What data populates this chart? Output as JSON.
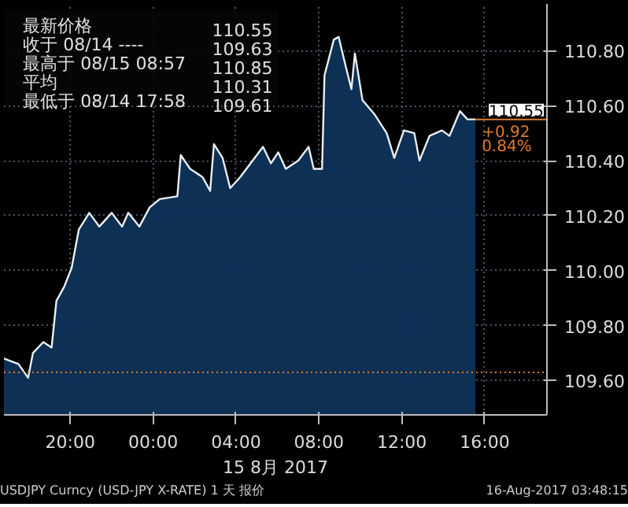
{
  "chart_data": {
    "type": "area",
    "xlabel": "15 8月 2017",
    "x": [
      "2017-08-14T16:48",
      "2017-08-14T17:30",
      "2017-08-14T17:58",
      "2017-08-14T18:12",
      "2017-08-14T18:42",
      "2017-08-14T19:06",
      "2017-08-14T19:20",
      "2017-08-14T19:42",
      "2017-08-14T20:04",
      "2017-08-14T20:25",
      "2017-08-14T20:55",
      "2017-08-14T21:24",
      "2017-08-14T22:00",
      "2017-08-14T22:30",
      "2017-08-14T22:48",
      "2017-08-14T23:20",
      "2017-08-14T23:50",
      "2017-08-15T00:19",
      "2017-08-15T01:10",
      "2017-08-15T01:20",
      "2017-08-15T01:47",
      "2017-08-15T02:23",
      "2017-08-15T02:45",
      "2017-08-15T02:56",
      "2017-08-15T03:21",
      "2017-08-15T03:43",
      "2017-08-15T04:12",
      "2017-08-15T04:42",
      "2017-08-15T05:18",
      "2017-08-15T05:41",
      "2017-08-15T06:02",
      "2017-08-15T06:24",
      "2017-08-15T07:00",
      "2017-08-15T07:30",
      "2017-08-15T07:45",
      "2017-08-15T08:09",
      "2017-08-15T08:16",
      "2017-08-15T08:43",
      "2017-08-15T08:57",
      "2017-08-15T09:18",
      "2017-08-15T09:34",
      "2017-08-15T09:44",
      "2017-08-15T10:06",
      "2017-08-15T10:40",
      "2017-08-15T11:16",
      "2017-08-15T11:38",
      "2017-08-15T12:06",
      "2017-08-15T12:36",
      "2017-08-15T12:51",
      "2017-08-15T13:20",
      "2017-08-15T13:56",
      "2017-08-15T14:18",
      "2017-08-15T14:48",
      "2017-08-15T15:10",
      "2017-08-15T15:33"
    ],
    "series": [
      {
        "color": "#0e3358",
        "values": [
          109.68,
          109.66,
          109.61,
          109.7,
          109.74,
          109.72,
          109.89,
          109.94,
          110.01,
          110.15,
          110.21,
          110.16,
          110.21,
          110.16,
          110.21,
          110.16,
          110.23,
          110.26,
          110.27,
          110.42,
          110.37,
          110.34,
          110.29,
          110.46,
          110.41,
          110.3,
          110.34,
          110.39,
          110.45,
          110.39,
          110.43,
          110.37,
          110.4,
          110.45,
          110.37,
          110.37,
          110.71,
          110.84,
          110.85,
          110.74,
          110.66,
          110.79,
          110.62,
          110.57,
          110.5,
          110.41,
          110.51,
          110.5,
          110.4,
          110.49,
          110.51,
          110.49,
          110.58,
          110.55,
          110.55
        ]
      }
    ],
    "xlim": [
      "2017-08-14T16:48",
      "2017-08-15T19:00"
    ],
    "ylim": [
      109.475,
      110.97
    ],
    "xticks": [
      {
        "value": "2017-08-14T20:00",
        "label": "20:00"
      },
      {
        "value": "2017-08-15T00:00",
        "label": "00:00"
      },
      {
        "value": "2017-08-15T04:00",
        "label": "04:00"
      },
      {
        "value": "2017-08-15T08:00",
        "label": "08:00"
      },
      {
        "value": "2017-08-15T12:00",
        "label": "12:00"
      },
      {
        "value": "2017-08-15T16:00",
        "label": "16:00"
      }
    ],
    "yticks": [
      {
        "value": 109.6,
        "label": "109.60"
      },
      {
        "value": 109.8,
        "label": "109.80"
      },
      {
        "value": 110.0,
        "label": "110.00"
      },
      {
        "value": 110.2,
        "label": "110.20"
      },
      {
        "value": 110.4,
        "label": "110.40"
      },
      {
        "value": 110.6,
        "label": "110.60"
      },
      {
        "value": 110.8,
        "label": "110.80"
      }
    ],
    "grid": true,
    "ref_lines": [
      {
        "axis": "y",
        "value": 109.63,
        "color": "#e07b2a",
        "line_style": "dotted"
      },
      {
        "axis": "y",
        "value": 110.55,
        "label": "110.55",
        "color": "#e07b2a",
        "line_style": "solid"
      }
    ],
    "annotations": [
      "最新价格",
      "110.55",
      "收于 08/14 ----",
      "109.63",
      "最高于 08/15 08:57",
      "110.85",
      "平均",
      "110.31",
      "最低于 08/14 17:58",
      "109.61",
      "+0.92",
      "0.84%",
      "USDJPY Curncy (USD-JPY X-RATE) 1 天 报价",
      "16-Aug-2017 03:48:15"
    ]
  }
}
